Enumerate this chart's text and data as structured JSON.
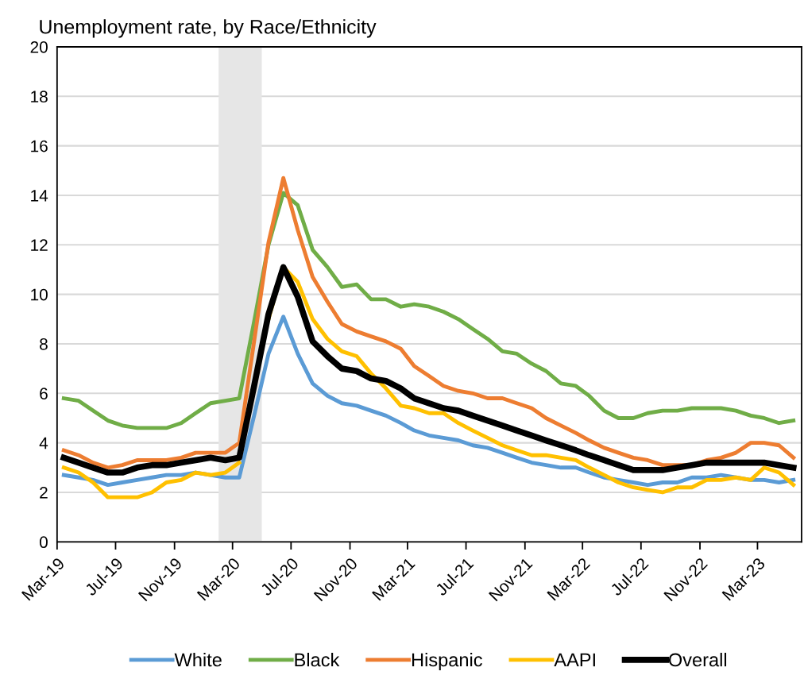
{
  "chart_data": {
    "type": "line",
    "title": "Unemployment rate, by Race/Ethnicity",
    "x": [
      "2019-03-15",
      "2019-04-15",
      "2019-05-15",
      "2019-06-15",
      "2019-07-15",
      "2019-08-15",
      "2019-09-15",
      "2019-10-15",
      "2019-11-15",
      "2019-12-15",
      "2020-01-15",
      "2020-02-15",
      "2020-03-15",
      "2020-04-15",
      "2020-05-15",
      "2020-06-15",
      "2020-07-15",
      "2020-08-15",
      "2020-09-15",
      "2020-10-15",
      "2020-11-15",
      "2020-12-15",
      "2021-01-15",
      "2021-02-15",
      "2021-03-15",
      "2021-04-15",
      "2021-05-15",
      "2021-06-15",
      "2021-07-15",
      "2021-08-15",
      "2021-09-15",
      "2021-10-15",
      "2021-11-15",
      "2021-12-15",
      "2022-01-15",
      "2022-02-15",
      "2022-03-15",
      "2022-04-15",
      "2022-05-15",
      "2022-06-15",
      "2022-07-15",
      "2022-08-15",
      "2022-09-15",
      "2022-10-15",
      "2022-11-15",
      "2022-12-15",
      "2023-01-15",
      "2023-02-15",
      "2023-03-15",
      "2023-04-15",
      "2023-05-15"
    ],
    "series": [
      {
        "name": "White",
        "color": "#5b9bd5",
        "values": [
          2.7,
          2.6,
          2.5,
          2.3,
          2.4,
          2.5,
          2.6,
          2.7,
          2.7,
          2.8,
          2.7,
          2.6,
          2.6,
          5.1,
          7.6,
          9.1,
          7.6,
          6.4,
          5.9,
          5.6,
          5.5,
          5.3,
          5.1,
          4.8,
          4.5,
          4.3,
          4.2,
          4.1,
          3.9,
          3.8,
          3.6,
          3.4,
          3.2,
          3.1,
          3.0,
          3.0,
          2.8,
          2.6,
          2.5,
          2.4,
          2.3,
          2.4,
          2.4,
          2.6,
          2.6,
          2.7,
          2.6,
          2.5,
          2.5,
          2.4,
          2.5
        ]
      },
      {
        "name": "Black",
        "color": "#70ad47",
        "values": [
          5.8,
          5.7,
          5.3,
          4.9,
          4.7,
          4.6,
          4.6,
          4.6,
          4.8,
          5.2,
          5.6,
          5.7,
          5.8,
          8.9,
          12.0,
          14.1,
          13.6,
          11.8,
          11.1,
          10.3,
          10.4,
          9.8,
          9.8,
          9.5,
          9.6,
          9.5,
          9.3,
          9.0,
          8.6,
          8.2,
          7.7,
          7.6,
          7.2,
          6.9,
          6.4,
          6.3,
          5.9,
          5.3,
          5.0,
          5.0,
          5.2,
          5.3,
          5.3,
          5.4,
          5.4,
          5.4,
          5.3,
          5.1,
          5.0,
          4.8,
          4.9
        ]
      },
      {
        "name": "Hispanic",
        "color": "#ed7d31",
        "values": [
          3.7,
          3.5,
          3.2,
          3.0,
          3.1,
          3.3,
          3.3,
          3.3,
          3.4,
          3.6,
          3.6,
          3.6,
          4.0,
          8.1,
          12.1,
          14.7,
          12.6,
          10.7,
          9.7,
          8.8,
          8.5,
          8.3,
          8.1,
          7.8,
          7.1,
          6.7,
          6.3,
          6.1,
          6.0,
          5.8,
          5.8,
          5.6,
          5.4,
          5.0,
          4.7,
          4.4,
          4.1,
          3.8,
          3.6,
          3.4,
          3.3,
          3.1,
          3.1,
          3.1,
          3.3,
          3.4,
          3.6,
          4.0,
          4.0,
          3.9,
          3.4
        ]
      },
      {
        "name": "AAPI",
        "color": "#ffc000",
        "values": [
          3.0,
          2.8,
          2.4,
          1.8,
          1.8,
          1.8,
          2.0,
          2.4,
          2.5,
          2.8,
          2.7,
          2.8,
          3.2,
          null,
          9.0,
          11.1,
          10.5,
          9.0,
          8.2,
          7.7,
          7.5,
          6.8,
          6.2,
          5.5,
          5.4,
          5.2,
          5.2,
          4.8,
          4.5,
          4.2,
          3.9,
          3.7,
          3.5,
          3.5,
          3.4,
          3.3,
          3.0,
          2.7,
          2.4,
          2.2,
          2.1,
          2.0,
          2.2,
          2.2,
          2.5,
          2.5,
          2.6,
          2.5,
          3.0,
          2.8,
          2.3
        ]
      },
      {
        "name": "Overall",
        "color": "#000000",
        "values": [
          3.4,
          3.2,
          3.0,
          2.8,
          2.8,
          3.0,
          3.1,
          3.1,
          3.2,
          3.3,
          3.4,
          3.3,
          3.4,
          6.3,
          9.2,
          11.1,
          9.9,
          8.1,
          7.5,
          7.0,
          6.9,
          6.6,
          6.5,
          6.2,
          5.8,
          5.6,
          5.4,
          5.3,
          5.1,
          4.9,
          4.7,
          4.5,
          4.3,
          4.1,
          3.9,
          3.7,
          3.5,
          3.3,
          3.1,
          2.9,
          2.9,
          2.9,
          3.0,
          3.1,
          3.2,
          3.2,
          3.2,
          3.2,
          3.2,
          3.1,
          3.0
        ]
      }
    ],
    "xlim": [
      "2019-03-01",
      "2023-06-01"
    ],
    "xticks": [
      {
        "value": "2019-03-01",
        "label": "Mar-19"
      },
      {
        "value": "2019-07-01",
        "label": "Jul-19"
      },
      {
        "value": "2019-11-01",
        "label": "Nov-19"
      },
      {
        "value": "2020-03-01",
        "label": "Mar-20"
      },
      {
        "value": "2020-07-01",
        "label": "Jul-20"
      },
      {
        "value": "2020-11-01",
        "label": "Nov-20"
      },
      {
        "value": "2021-03-01",
        "label": "Mar-21"
      },
      {
        "value": "2021-07-01",
        "label": "Jul-21"
      },
      {
        "value": "2021-11-01",
        "label": "Nov-21"
      },
      {
        "value": "2022-03-01",
        "label": "Mar-22"
      },
      {
        "value": "2022-07-01",
        "label": "Jul-22"
      },
      {
        "value": "2022-11-01",
        "label": "Nov-22"
      },
      {
        "value": "2023-03-01",
        "label": "Mar-23"
      }
    ],
    "ylim": [
      0,
      20
    ],
    "yticks": [
      0,
      2,
      4,
      6,
      8,
      10,
      12,
      14,
      16,
      18,
      20
    ],
    "bands": [
      {
        "axis": "x",
        "from": "2020-02-01",
        "to": "2020-05-01",
        "color": "#e6e6e6"
      }
    ],
    "grid": "y",
    "legend": "bottom",
    "marker": "none",
    "line_style": "solid"
  }
}
